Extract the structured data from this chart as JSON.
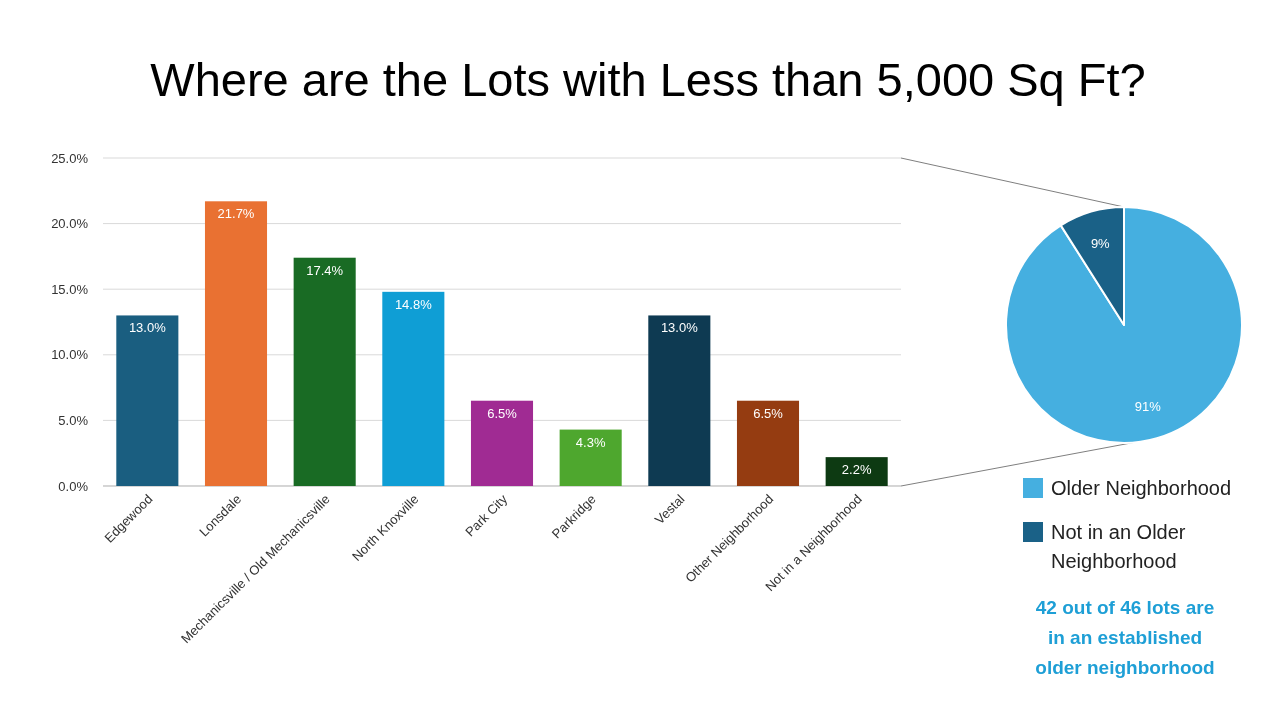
{
  "chart_data": [
    {
      "type": "bar",
      "title": "Where are the Lots with Less than 5,000 Sq Ft?",
      "categories": [
        "Edgewood",
        "Lonsdale",
        "Mechanicsville / Old Mechanicsville",
        "North Knoxville",
        "Park City",
        "Parkridge",
        "Vestal",
        "Other Neighborhood",
        "Not in a Neighborhood"
      ],
      "values": [
        13.0,
        21.7,
        17.4,
        14.8,
        6.5,
        4.3,
        13.0,
        6.5,
        2.2
      ],
      "colors": [
        "#1a5e80",
        "#e97132",
        "#196b24",
        "#0f9ed5",
        "#a02b93",
        "#4ea72e",
        "#0e3a52",
        "#953c11",
        "#0d3a12"
      ],
      "value_labels": [
        "13.0%",
        "21.7%",
        "17.4%",
        "14.8%",
        "6.5%",
        "4.3%",
        "13.0%",
        "6.5%",
        "2.2%"
      ],
      "ylim": [
        0,
        25
      ],
      "yticks": [
        {
          "value": 0,
          "label": "0.0%"
        },
        {
          "value": 5,
          "label": "5.0%"
        },
        {
          "value": 10,
          "label": "10.0%"
        },
        {
          "value": 15,
          "label": "15.0%"
        },
        {
          "value": 20,
          "label": "20.0%"
        },
        {
          "value": 25,
          "label": "25.0%"
        }
      ],
      "grid": "y"
    },
    {
      "type": "pie",
      "categories": [
        "Older Neighborhood",
        "Not in an Older Neighborhood"
      ],
      "values": [
        91,
        9
      ],
      "colors": [
        "#45afe0",
        "#1a6187"
      ],
      "value_labels": [
        "91%",
        "9%"
      ],
      "legend": "bottom",
      "annotations": [
        "42 out of 46 lots are in an established older neighborhood"
      ]
    }
  ]
}
